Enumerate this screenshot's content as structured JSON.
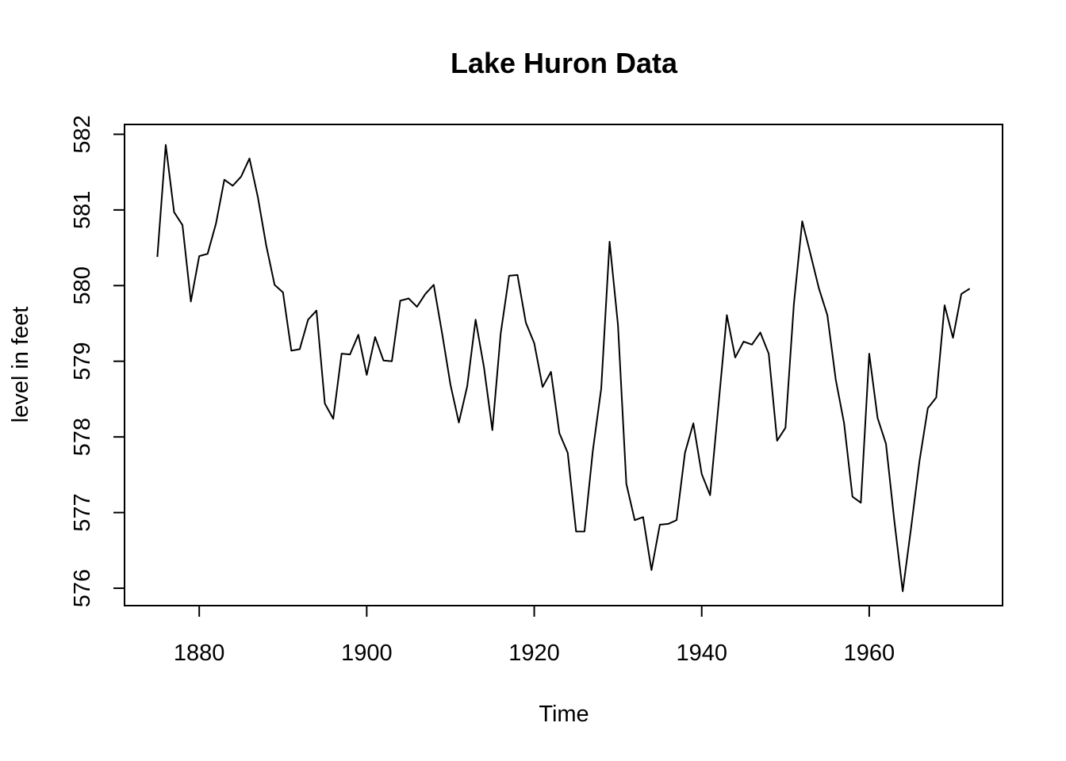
{
  "chart_data": {
    "type": "line",
    "title": "Lake Huron Data",
    "xlabel": "Time",
    "ylabel": "level in feet",
    "xlim": [
      1871.08,
      1975.92
    ],
    "ylim": [
      575.77,
      582.13
    ],
    "x_ticks": [
      1880,
      1900,
      1920,
      1940,
      1960
    ],
    "y_ticks": [
      576,
      577,
      578,
      579,
      580,
      581,
      582
    ],
    "x_tick_labels": [
      "1880",
      "1900",
      "1920",
      "1940",
      "1960"
    ],
    "y_tick_labels": [
      "576",
      "577",
      "578",
      "579",
      "580",
      "581",
      "582"
    ],
    "grid": false,
    "legend": "none",
    "line_color": "#000000",
    "series": [
      {
        "x": [
          1875,
          1876,
          1877,
          1878,
          1879,
          1880,
          1881,
          1882,
          1883,
          1884,
          1885,
          1886,
          1887,
          1888,
          1889,
          1890,
          1891,
          1892,
          1893,
          1894,
          1895,
          1896,
          1897,
          1898,
          1899,
          1900,
          1901,
          1902,
          1903,
          1904,
          1905,
          1906,
          1907,
          1908,
          1909,
          1910,
          1911,
          1912,
          1913,
          1914,
          1915,
          1916,
          1917,
          1918,
          1919,
          1920,
          1921,
          1922,
          1923,
          1924,
          1925,
          1926,
          1927,
          1928,
          1929,
          1930,
          1931,
          1932,
          1933,
          1934,
          1935,
          1936,
          1937,
          1938,
          1939,
          1940,
          1941,
          1942,
          1943,
          1944,
          1945,
          1946,
          1947,
          1948,
          1949,
          1950,
          1951,
          1952,
          1953,
          1954,
          1955,
          1956,
          1957,
          1958,
          1959,
          1960,
          1961,
          1962,
          1963,
          1964,
          1965,
          1966,
          1967,
          1968,
          1969,
          1970,
          1971,
          1972
        ],
        "values": [
          580.38,
          581.86,
          580.97,
          580.8,
          579.79,
          580.39,
          580.42,
          580.82,
          581.4,
          581.32,
          581.44,
          581.68,
          581.17,
          580.53,
          580.01,
          579.91,
          579.14,
          579.16,
          579.55,
          579.67,
          578.44,
          578.24,
          579.1,
          579.09,
          579.35,
          578.82,
          579.32,
          579.01,
          579.0,
          579.8,
          579.83,
          579.72,
          579.89,
          580.01,
          579.37,
          578.69,
          578.19,
          578.67,
          579.55,
          578.92,
          578.09,
          579.37,
          580.13,
          580.14,
          579.51,
          579.24,
          578.66,
          578.86,
          578.05,
          577.79,
          576.75,
          576.75,
          577.82,
          578.64,
          580.58,
          579.48,
          577.38,
          576.9,
          576.94,
          576.24,
          576.84,
          576.85,
          576.9,
          577.79,
          578.18,
          577.51,
          577.23,
          578.42,
          579.61,
          579.05,
          579.26,
          579.22,
          579.38,
          579.1,
          577.95,
          578.12,
          579.75,
          580.85,
          580.41,
          579.96,
          579.61,
          578.76,
          578.18,
          577.21,
          577.13,
          579.1,
          578.25,
          577.91,
          576.89,
          575.96,
          576.8,
          577.68,
          578.38,
          578.52,
          579.74,
          579.31,
          579.89,
          579.96
        ]
      }
    ]
  }
}
